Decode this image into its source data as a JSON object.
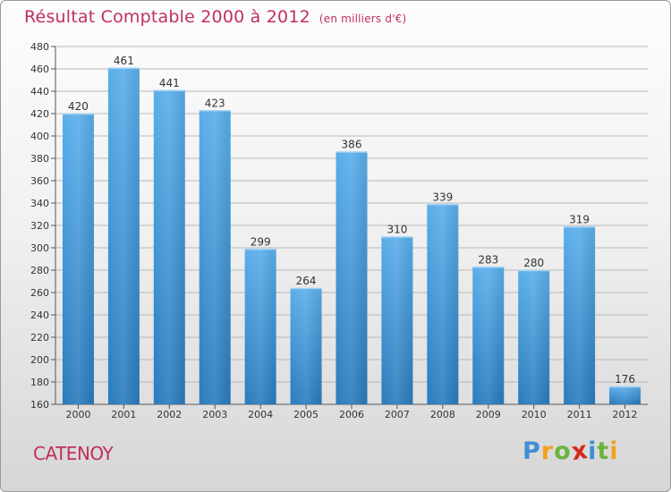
{
  "header": {
    "title": "Résultat Comptable 2000 à 2012",
    "unit": "(en milliers d'€)"
  },
  "footer": {
    "city": "CATENOY",
    "brand_letters": [
      {
        "char": "P",
        "color": "#3e8fd6"
      },
      {
        "char": "r",
        "color": "#f0a21c"
      },
      {
        "char": "o",
        "color": "#6cb33e"
      },
      {
        "char": "x",
        "color": "#d6281c"
      },
      {
        "char": "i",
        "color": "#3e8fd6"
      },
      {
        "char": "t",
        "color": "#6cb33e"
      },
      {
        "char": "i",
        "color": "#f0a21c"
      }
    ]
  },
  "colors": {
    "title": "#c0305a",
    "bar_top": "#5aaeea",
    "bar_bottom": "#2a7bbd",
    "grid": "#b8b8b8"
  },
  "chart_data": {
    "type": "bar",
    "title": "Résultat Comptable 2000 à 2012",
    "ylabel": "",
    "xlabel": "",
    "categories": [
      "2000",
      "2001",
      "2002",
      "2003",
      "2004",
      "2005",
      "2006",
      "2007",
      "2008",
      "2009",
      "2010",
      "2011",
      "2012"
    ],
    "values": [
      420,
      461,
      441,
      423,
      299,
      264,
      386,
      310,
      339,
      283,
      280,
      319,
      176
    ],
    "ylim": [
      160,
      480
    ],
    "yticks": [
      160,
      180,
      200,
      220,
      240,
      260,
      280,
      300,
      320,
      340,
      360,
      380,
      400,
      420,
      440,
      460,
      480
    ],
    "grid": true,
    "data_labels": true
  }
}
